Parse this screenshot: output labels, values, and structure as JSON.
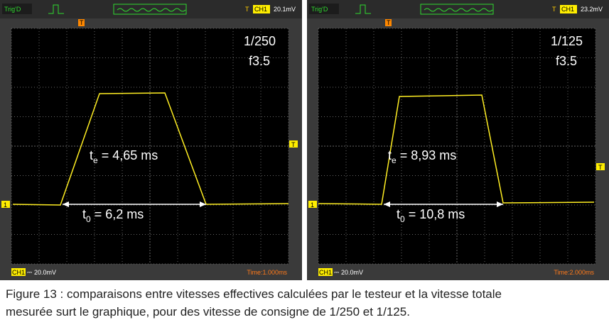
{
  "panels": [
    {
      "trig": "Trig'D",
      "trigger_marker": "T",
      "channel": "CH1",
      "trigger_level": "20.1mV",
      "shutter": "1/250",
      "aperture": "f3.5",
      "te": {
        "symbol": "t",
        "sub": "e",
        "text": " = 4,65 ms"
      },
      "t0": {
        "symbol": "t",
        "sub": "0",
        "text": " = 6,2 ms"
      },
      "channel_marker": "1",
      "bottom_channel": "CH1",
      "coupling": "⎓",
      "scale": "20.0mV",
      "time": "Time:1.000ms"
    },
    {
      "trig": "Trig'D",
      "trigger_marker": "T",
      "channel": "CH1",
      "trigger_level": "23.2mV",
      "shutter": "1/125",
      "aperture": "f3.5",
      "te": {
        "symbol": "t",
        "sub": "e",
        "text": " = 8,93 ms"
      },
      "t0": {
        "symbol": "t",
        "sub": "0",
        "text": " = 10,8 ms"
      },
      "channel_marker": "1",
      "bottom_channel": "CH1",
      "coupling": "⎓",
      "scale": "20.0mV",
      "time": "Time:2.000ms"
    }
  ],
  "caption": [
    "Figure 13 : comparaisons entre vitesses effectives calculées par le testeur et la vitesse totale",
    "mesurée surt le graphique, pour des vitesse de consigne de 1/250 et 1/125."
  ]
}
